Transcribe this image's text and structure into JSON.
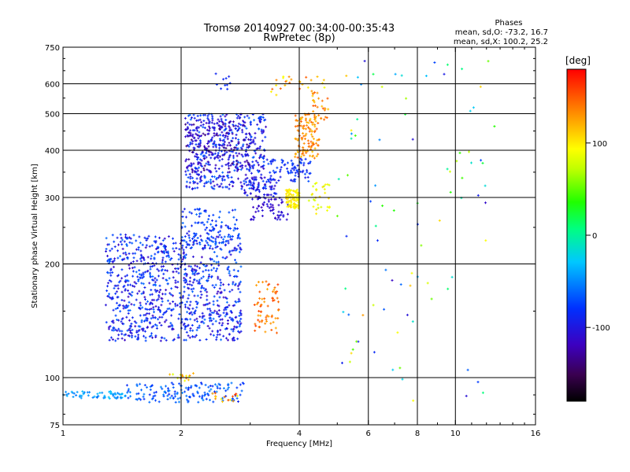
{
  "header": {
    "title_line1": "Tromsø 20140927 00:34:00-00:35:43",
    "title_line2": "RwPretec (8p)"
  },
  "phases": {
    "label": "Phases",
    "line1": "mean, sd,O: -73.2, 16.7",
    "line2": "mean, sd,X: 100.2, 25.2"
  },
  "colorbar": {
    "unit": "[deg]",
    "ticks": [
      "100",
      "0",
      "-100"
    ],
    "tick_values": [
      100,
      0,
      -100
    ],
    "range": [
      -180,
      180
    ]
  },
  "chart_data": {
    "type": "scatter",
    "title": "Tromsø 20140927 00:34:00-00:35:43",
    "subtitle": "RwPretec (8p)",
    "xlabel": "Frequency [MHz]",
    "ylabel": "Stationary phase Virtual Height [km]",
    "x_scale": "log",
    "y_scale": "log",
    "xlim": [
      1,
      16
    ],
    "ylim": [
      75,
      750
    ],
    "x_ticks": [
      1,
      2,
      4,
      6,
      8,
      10,
      16
    ],
    "x_tick_labels": [
      "1",
      "2",
      "4",
      "6",
      "8",
      "10",
      "16"
    ],
    "x_gridlines": [
      2,
      4,
      6,
      8,
      10
    ],
    "y_ticks": [
      75,
      100,
      200,
      300,
      400,
      500,
      600,
      750
    ],
    "y_tick_labels": [
      "75",
      "100",
      "200",
      "300",
      "400",
      "500",
      "600",
      "750"
    ],
    "y_gridlines": [
      100,
      200,
      300,
      400,
      500,
      600
    ],
    "color_value": "phase [deg]",
    "clusters": [
      {
        "x": [
          1.28,
          2.85
        ],
        "y": [
          125,
          240
        ],
        "n": 950,
        "phase": [
          -120,
          -60
        ]
      },
      {
        "x": [
          2.0,
          2.8
        ],
        "y": [
          220,
          280
        ],
        "n": 120,
        "phase": [
          -100,
          -60
        ]
      },
      {
        "x": [
          2.05,
          3.3
        ],
        "y": [
          315,
          500
        ],
        "n": 480,
        "phase": [
          -120,
          -60
        ]
      },
      {
        "x": [
          2.05,
          3.0
        ],
        "y": [
          350,
          480
        ],
        "n": 160,
        "phase": [
          -140,
          -100
        ]
      },
      {
        "x": [
          2.45,
          2.7
        ],
        "y": [
          580,
          650
        ],
        "n": 10,
        "phase": [
          -110,
          -80
        ]
      },
      {
        "x": [
          2.9,
          3.5
        ],
        "y": [
          300,
          340
        ],
        "n": 60,
        "phase": [
          -120,
          -80
        ]
      },
      {
        "x": [
          3.0,
          3.75
        ],
        "y": [
          262,
          300
        ],
        "n": 60,
        "phase": [
          -120,
          -100
        ]
      },
      {
        "x": [
          3.3,
          4.3
        ],
        "y": [
          330,
          380
        ],
        "n": 80,
        "phase": [
          -100,
          -70
        ]
      },
      {
        "x": [
          3.9,
          4.5
        ],
        "y": [
          380,
          500
        ],
        "n": 120,
        "phase": [
          110,
          150
        ]
      },
      {
        "x": [
          4.2,
          4.8
        ],
        "y": [
          270,
          330
        ],
        "n": 30,
        "phase": [
          70,
          110
        ]
      },
      {
        "x": [
          3.7,
          4.0
        ],
        "y": [
          280,
          315
        ],
        "n": 90,
        "phase": [
          90,
          110
        ]
      },
      {
        "x": [
          3.3,
          4.7
        ],
        "y": [
          560,
          630
        ],
        "n": 25,
        "phase": [
          90,
          150
        ]
      },
      {
        "x": [
          4.3,
          4.75
        ],
        "y": [
          480,
          580
        ],
        "n": 30,
        "phase": [
          110,
          150
        ]
      },
      {
        "x": [
          3.05,
          3.55
        ],
        "y": [
          130,
          180
        ],
        "n": 65,
        "phase": [
          120,
          160
        ]
      },
      {
        "x": [
          1.0,
          1.45
        ],
        "y": [
          88,
          92
        ],
        "n": 60,
        "phase": [
          -60,
          -30
        ]
      },
      {
        "x": [
          1.45,
          2.9
        ],
        "y": [
          86,
          97
        ],
        "n": 150,
        "phase": [
          -90,
          -50
        ]
      },
      {
        "x": [
          1.85,
          2.15
        ],
        "y": [
          98,
          103
        ],
        "n": 14,
        "phase": [
          80,
          140
        ]
      },
      {
        "x": [
          2.4,
          2.8
        ],
        "y": [
          86,
          92
        ],
        "n": 16,
        "phase": [
          90,
          160
        ]
      },
      {
        "x": [
          5.0,
          13.0
        ],
        "y": [
          85,
          700
        ],
        "n": 90,
        "phase": [
          -120,
          130
        ]
      }
    ]
  }
}
